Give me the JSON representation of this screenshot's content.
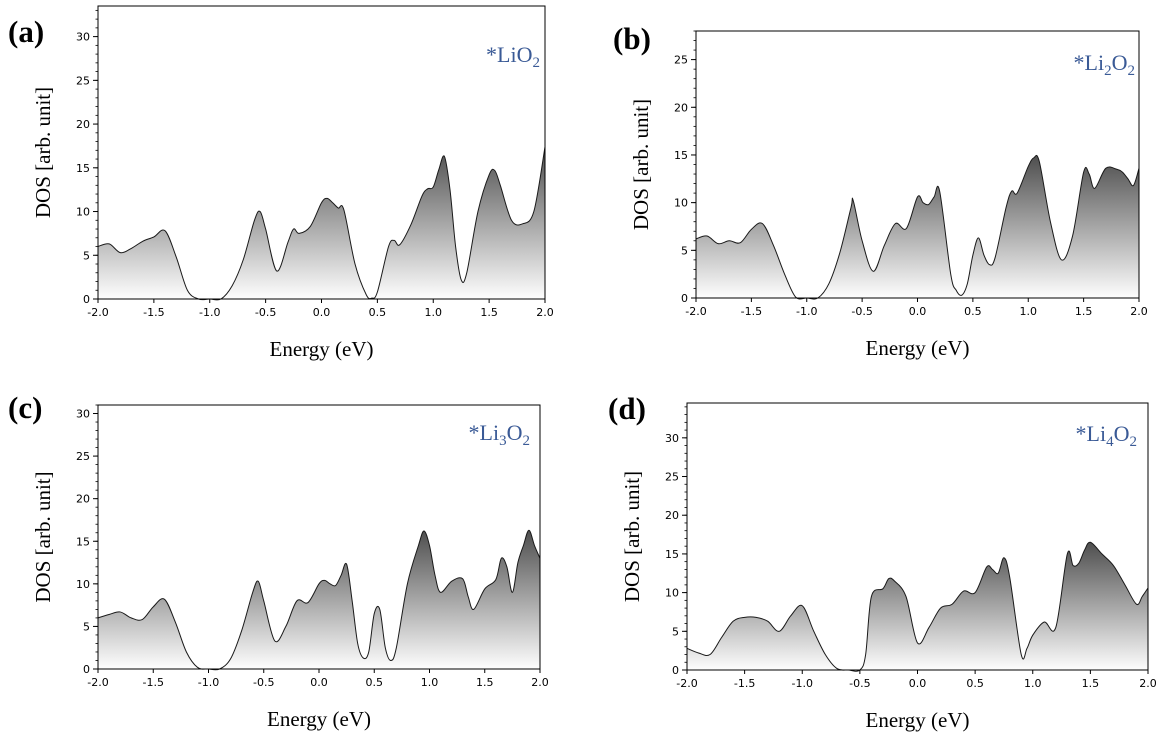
{
  "chart_data": [
    {
      "type": "area",
      "panel_label": "(a)",
      "annotation": {
        "prefix": "*Li",
        "sub1": "",
        "mid": "O",
        "sub2": "2"
      },
      "xlabel": "Energy (eV)",
      "ylabel": "DOS [arb. unit]",
      "xlim": [
        -2.0,
        2.0
      ],
      "ylim": [
        0,
        33.5
      ],
      "xticks": [
        -2.0,
        -1.5,
        -1.0,
        -0.5,
        0.0,
        0.5,
        1.0,
        1.5,
        2.0
      ],
      "xtick_labels": [
        "-2.0",
        "-1.5",
        "-1.0",
        "-0.5",
        "0.0",
        "0.5",
        "1.0",
        "1.5",
        "2.0"
      ],
      "yticks": [
        0,
        5,
        10,
        15,
        20,
        25,
        30
      ],
      "yminor_step": 1,
      "grid": false,
      "x": [
        -2.0,
        -1.9,
        -1.8,
        -1.7,
        -1.6,
        -1.5,
        -1.4,
        -1.3,
        -1.2,
        -1.1,
        -1.0,
        -0.9,
        -0.8,
        -0.7,
        -0.6,
        -0.55,
        -0.5,
        -0.4,
        -0.3,
        -0.25,
        -0.2,
        -0.1,
        0.0,
        0.05,
        0.1,
        0.15,
        0.2,
        0.3,
        0.4,
        0.45,
        0.5,
        0.6,
        0.65,
        0.7,
        0.8,
        0.9,
        0.95,
        1.0,
        1.05,
        1.1,
        1.15,
        1.2,
        1.25,
        1.3,
        1.4,
        1.5,
        1.55,
        1.6,
        1.7,
        1.8,
        1.9,
        2.0
      ],
      "y": [
        6.0,
        6.3,
        5.3,
        5.8,
        6.6,
        7.1,
        7.8,
        4.8,
        1.0,
        0.0,
        0.0,
        0.0,
        1.5,
        4.5,
        9.0,
        10.0,
        8.0,
        3.2,
        6.5,
        8.0,
        7.5,
        8.3,
        11.0,
        11.5,
        11.0,
        10.4,
        10.2,
        4.0,
        0.5,
        0.1,
        0.8,
        6.0,
        6.7,
        6.2,
        8.5,
        11.8,
        12.6,
        12.8,
        14.8,
        16.3,
        12.5,
        6.0,
        2.2,
        3.0,
        10.0,
        14.2,
        14.7,
        13.0,
        9.0,
        8.6,
        10.0,
        17.4
      ]
    },
    {
      "type": "area",
      "panel_label": "(b)",
      "annotation": {
        "prefix": "*Li",
        "sub1": "2",
        "mid": "O",
        "sub2": "2"
      },
      "xlabel": "Energy (eV)",
      "ylabel": "DOS [arb. unit]",
      "xlim": [
        -2.0,
        2.0
      ],
      "ylim": [
        0,
        28
      ],
      "xticks": [
        -2.0,
        -1.5,
        -1.0,
        -0.5,
        0.0,
        0.5,
        1.0,
        1.5,
        2.0
      ],
      "xtick_labels": [
        "-2.0",
        "-1.5",
        "-1.0",
        "-0.5",
        "0.0",
        "0.5",
        "1.0",
        "1.5",
        "2.0"
      ],
      "yticks": [
        0,
        5,
        10,
        15,
        20,
        25
      ],
      "yminor_step": 1,
      "grid": false,
      "x": [
        -2.0,
        -1.9,
        -1.8,
        -1.7,
        -1.6,
        -1.5,
        -1.4,
        -1.3,
        -1.2,
        -1.1,
        -1.0,
        -0.9,
        -0.8,
        -0.7,
        -0.6,
        -0.58,
        -0.5,
        -0.4,
        -0.3,
        -0.2,
        -0.1,
        0.0,
        0.05,
        0.1,
        0.15,
        0.2,
        0.3,
        0.35,
        0.4,
        0.45,
        0.5,
        0.55,
        0.6,
        0.65,
        0.7,
        0.8,
        0.85,
        0.9,
        1.0,
        1.05,
        1.1,
        1.2,
        1.3,
        1.4,
        1.5,
        1.55,
        1.6,
        1.7,
        1.8,
        1.85,
        1.9,
        1.95,
        2.0
      ],
      "y": [
        6.2,
        6.5,
        5.7,
        6.0,
        5.8,
        7.2,
        7.8,
        5.5,
        2.5,
        0.1,
        0.0,
        0.0,
        1.5,
        4.8,
        9.5,
        10.2,
        6.0,
        2.8,
        5.5,
        7.8,
        7.3,
        10.6,
        10.0,
        9.8,
        10.6,
        11.2,
        2.5,
        0.8,
        0.3,
        1.5,
        4.5,
        6.3,
        4.5,
        3.5,
        4.2,
        9.5,
        11.2,
        11.0,
        13.8,
        14.7,
        14.3,
        8.0,
        4.0,
        6.5,
        13.2,
        13.0,
        11.5,
        13.6,
        13.5,
        13.2,
        12.5,
        11.8,
        13.6
      ]
    },
    {
      "type": "area",
      "panel_label": "(c)",
      "annotation": {
        "prefix": "*Li",
        "sub1": "3",
        "mid": "O",
        "sub2": "2"
      },
      "xlabel": "Energy (eV)",
      "ylabel": "DOS [arb. unit]",
      "xlim": [
        -2.0,
        2.0
      ],
      "ylim": [
        0,
        31
      ],
      "xticks": [
        -2.0,
        -1.5,
        -1.0,
        -0.5,
        0.0,
        0.5,
        1.0,
        1.5,
        2.0
      ],
      "xtick_labels": [
        "-2.0",
        "-1.5",
        "-1.0",
        "-0.5",
        "0.0",
        "0.5",
        "1.0",
        "1.5",
        "2.0"
      ],
      "yticks": [
        0,
        5,
        10,
        15,
        20,
        25,
        30
      ],
      "yminor_step": 1,
      "grid": false,
      "x": [
        -2.0,
        -1.9,
        -1.8,
        -1.7,
        -1.6,
        -1.5,
        -1.4,
        -1.3,
        -1.2,
        -1.1,
        -1.0,
        -0.9,
        -0.8,
        -0.7,
        -0.6,
        -0.55,
        -0.5,
        -0.4,
        -0.3,
        -0.2,
        -0.1,
        0.0,
        0.05,
        0.1,
        0.15,
        0.2,
        0.25,
        0.3,
        0.35,
        0.4,
        0.45,
        0.5,
        0.55,
        0.6,
        0.65,
        0.7,
        0.8,
        0.9,
        0.95,
        1.0,
        1.05,
        1.1,
        1.2,
        1.3,
        1.35,
        1.4,
        1.5,
        1.6,
        1.65,
        1.7,
        1.75,
        1.8,
        1.85,
        1.9,
        1.95,
        2.0
      ],
      "y": [
        6.0,
        6.4,
        6.7,
        6.0,
        5.8,
        7.3,
        8.2,
        5.5,
        2.0,
        0.2,
        0.0,
        0.0,
        1.2,
        4.5,
        9.0,
        10.3,
        8.0,
        3.3,
        5.0,
        8.0,
        7.8,
        10.0,
        10.4,
        10.0,
        9.8,
        11.0,
        12.3,
        8.0,
        3.0,
        1.3,
        2.0,
        6.5,
        7.0,
        2.5,
        1.0,
        2.5,
        10.0,
        14.5,
        16.2,
        14.5,
        11.0,
        9.0,
        10.3,
        10.6,
        8.5,
        7.0,
        9.4,
        10.5,
        13.0,
        12.0,
        9.0,
        12.5,
        14.5,
        16.3,
        14.5,
        13.0
      ]
    },
    {
      "type": "area",
      "panel_label": "(d)",
      "annotation": {
        "prefix": "*Li",
        "sub1": "4",
        "mid": "O",
        "sub2": "2"
      },
      "xlabel": "Energy (eV)",
      "ylabel": "DOS [arb. unit]",
      "xlim": [
        -2.0,
        2.0
      ],
      "ylim": [
        0,
        34.5
      ],
      "xticks": [
        -2.0,
        -1.5,
        -1.0,
        -0.5,
        0.0,
        0.5,
        1.0,
        1.5,
        2.0
      ],
      "xtick_labels": [
        "-2.0",
        "-1.5",
        "-1.0",
        "-0.5",
        "0.0",
        "0.5",
        "1.0",
        "1.5",
        "2.0"
      ],
      "yticks": [
        0,
        5,
        10,
        15,
        20,
        25,
        30
      ],
      "yminor_step": 1,
      "grid": false,
      "x": [
        -2.0,
        -1.9,
        -1.8,
        -1.7,
        -1.6,
        -1.5,
        -1.4,
        -1.3,
        -1.2,
        -1.1,
        -1.0,
        -0.9,
        -0.8,
        -0.7,
        -0.6,
        -0.5,
        -0.45,
        -0.4,
        -0.3,
        -0.25,
        -0.2,
        -0.1,
        0.0,
        0.1,
        0.2,
        0.3,
        0.4,
        0.5,
        0.6,
        0.65,
        0.7,
        0.75,
        0.8,
        0.9,
        0.95,
        1.0,
        1.1,
        1.2,
        1.3,
        1.35,
        1.4,
        1.45,
        1.5,
        1.6,
        1.7,
        1.8,
        1.9,
        1.95,
        2.0
      ],
      "y": [
        2.8,
        2.2,
        2.0,
        4.2,
        6.3,
        6.8,
        6.8,
        6.3,
        5.0,
        7.0,
        8.3,
        5.0,
        2.0,
        0.2,
        0.0,
        0.0,
        2.0,
        9.5,
        10.5,
        11.8,
        11.5,
        9.5,
        3.5,
        5.5,
        8.0,
        8.5,
        10.2,
        10.0,
        13.3,
        13.0,
        12.5,
        14.5,
        12.0,
        2.0,
        2.8,
        4.5,
        6.2,
        5.5,
        15.0,
        13.5,
        13.8,
        15.5,
        16.5,
        15.0,
        13.5,
        11.0,
        8.5,
        9.5,
        10.6
      ]
    }
  ]
}
